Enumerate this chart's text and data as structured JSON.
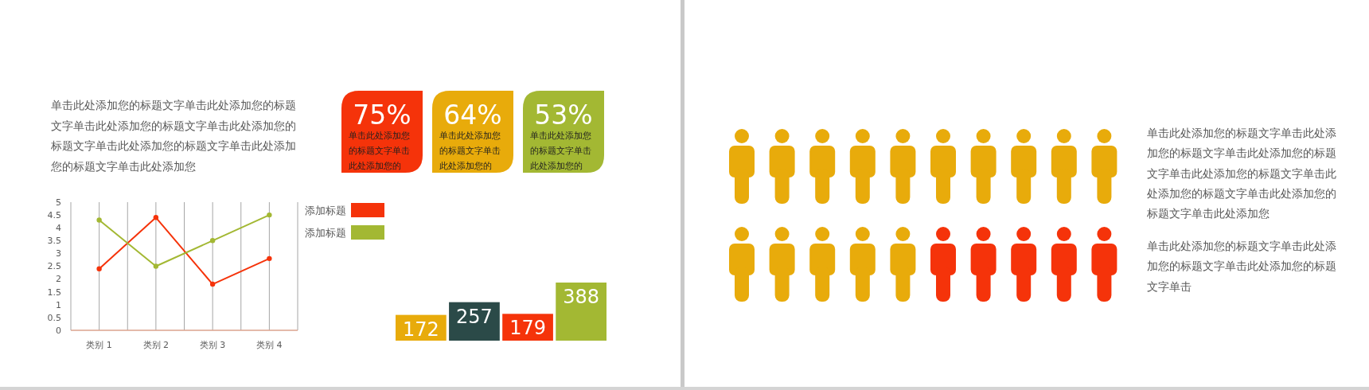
{
  "chart_data": [
    {
      "type": "line",
      "annotations": [
        "单击此处添加您的标题文字单击此处添加您的标题文字单击此处添加您的标题文字单击此处添加您的标题文字单击此处添加您的标题文字单击此处添加您的标题文字单击此处添加您"
      ],
      "categories": [
        "类别 1",
        "类别 2",
        "类别 3",
        "类别 4"
      ],
      "series": [
        {
          "name": "添加标题",
          "color": "#f5330a",
          "values": [
            2.4,
            4.4,
            1.8,
            2.8
          ]
        },
        {
          "name": "添加标题",
          "color": "#a3b833",
          "values": [
            4.3,
            2.5,
            3.5,
            4.5
          ]
        }
      ],
      "ylim": [
        0,
        5
      ],
      "yticks": [
        0,
        0.5,
        1,
        1.5,
        2,
        2.5,
        3,
        3.5,
        4,
        4.5,
        5
      ],
      "grid": "x",
      "legend": "right",
      "marker": "circle"
    },
    {
      "type": "other",
      "categories": [
        "单击此处添加您的标题文字单击此处添加您的",
        "单击此处添加您的标题文字单击此处添加您的",
        "单击此处添加您的标题文字单击此处添加您的"
      ],
      "values": [
        75,
        64,
        53
      ],
      "value_labels": [
        "75%",
        "64%",
        "53%"
      ],
      "colors": [
        "#f5330a",
        "#e8ab0b",
        "#a3b833"
      ]
    },
    {
      "type": "bar",
      "categories": [
        null,
        null,
        null,
        null
      ],
      "values": [
        172,
        257,
        179,
        388
      ],
      "colors": [
        "#e8ab0b",
        "#2b4a48",
        "#f5330a",
        "#a3b833"
      ],
      "data_labels": true
    },
    {
      "type": "other",
      "annotations": [
        "单击此处添加您的标题文字单击此处添加您的标题文字单击此处添加您的标题文字单击此处添加您的标题文字单击此处添加您的标题文字单击此处添加您的标题文字单击此处添加您",
        "单击此处添加您的标题文字单击此处添加您的标题文字单击此处添加您的标题文字单击"
      ]
    }
  ]
}
